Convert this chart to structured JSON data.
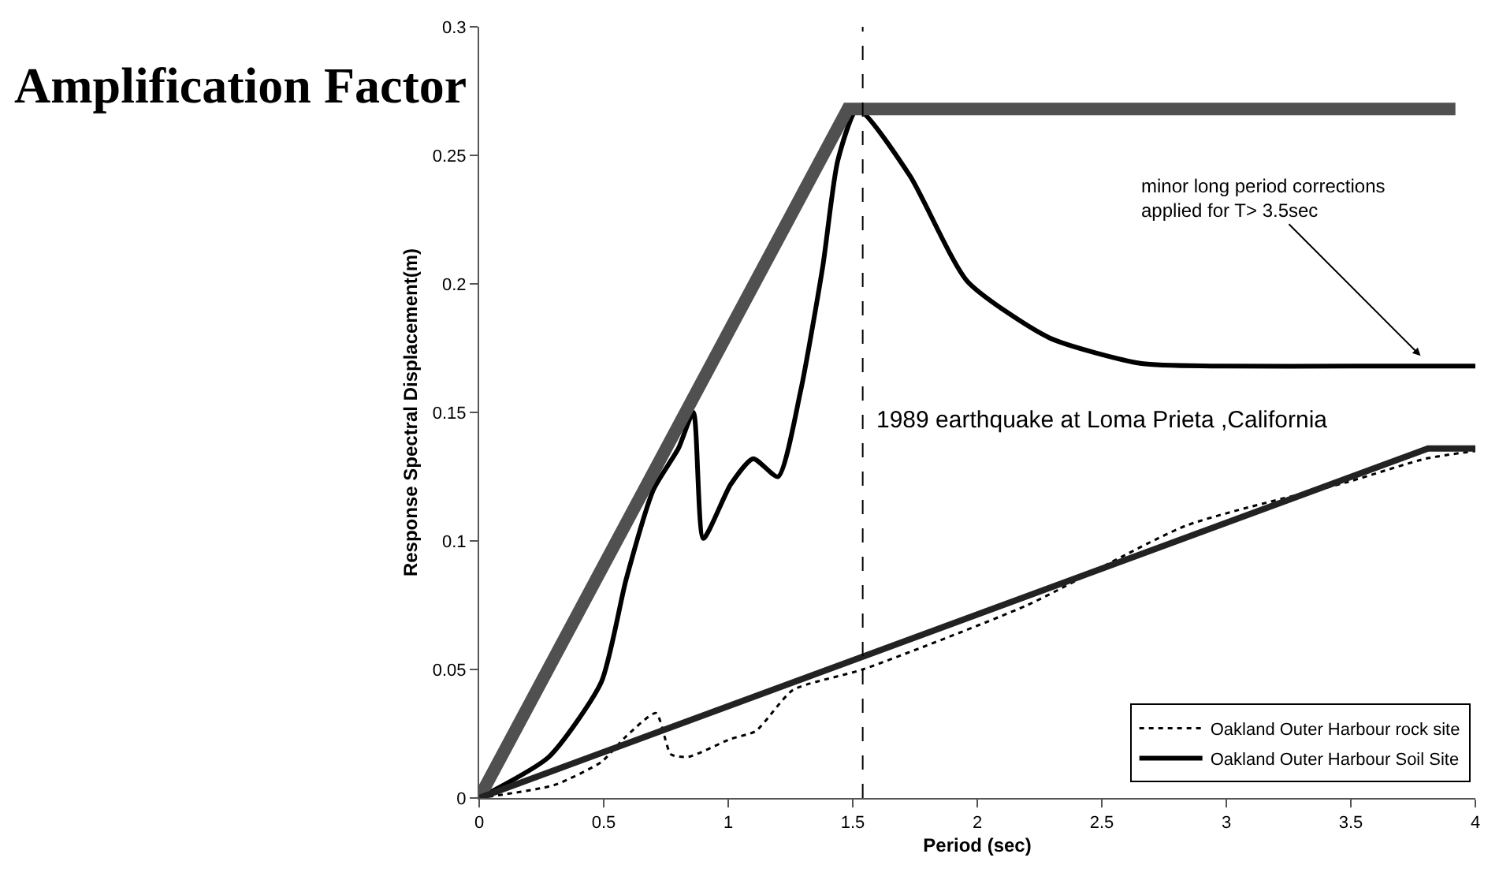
{
  "chart_data": {
    "type": "line",
    "xlabel": "Period (sec)",
    "ylabel": "Response Spectral Displacement(m)",
    "xlim": [
      0,
      4
    ],
    "xticks": [
      0,
      0.5,
      1,
      1.5,
      2,
      2.5,
      3,
      3.5,
      4
    ],
    "ylim": [
      0,
      0.3
    ],
    "yticks": [
      0,
      0.05,
      0.1,
      0.15,
      0.2,
      0.25,
      0.3
    ],
    "legend": "bottom right",
    "marker": "none",
    "series": [
      {
        "name": "Oakland Outer Harbour rock site",
        "color": "#000000",
        "line_style": "dotted",
        "x": [
          0,
          0.3,
          0.49,
          0.59,
          0.71,
          0.77,
          0.84,
          1.01,
          1.11,
          1.26,
          1.54,
          2.2,
          2.84,
          3.49,
          3.8,
          4
        ],
        "values": [
          0,
          0.005,
          0.014,
          0.024,
          0.033,
          0.017,
          0.016,
          0.023,
          0.026,
          0.042,
          0.05,
          0.075,
          0.106,
          0.123,
          0.132,
          0.135
        ]
      },
      {
        "name": "Oakland Outer Harbour Soil Site",
        "color": "#000000",
        "line_style": "solid",
        "x": [
          0,
          0.28,
          0.49,
          0.59,
          0.7,
          0.8,
          0.86,
          0.9,
          1.01,
          1.1,
          1.2,
          1.29,
          1.38,
          1.44,
          1.52,
          1.73,
          1.96,
          2.29,
          2.66,
          3.0,
          3.5,
          4
        ],
        "values": [
          0,
          0.016,
          0.045,
          0.085,
          0.12,
          0.136,
          0.15,
          0.101,
          0.122,
          0.132,
          0.125,
          0.158,
          0.207,
          0.248,
          0.268,
          0.242,
          0.201,
          0.179,
          0.169,
          0.168,
          0.168,
          0.168
        ]
      },
      {
        "color": "#505050",
        "line_style": "solid",
        "x": [
          0,
          1.48,
          3.92
        ],
        "values": [
          0,
          0.268,
          0.268
        ]
      },
      {
        "color": "#222222",
        "line_style": "solid",
        "x": [
          0,
          3.81,
          4
        ],
        "values": [
          0,
          0.136,
          0.136
        ]
      }
    ],
    "ref_lines": [
      {
        "axis": "x",
        "value": 1.54,
        "color": "#000000",
        "line_style": "dashed"
      }
    ],
    "annotations": [
      "Amplification Factor",
      {
        "text": "minor long period corrections\napplied for T> 3.5sec",
        "x": 3.78,
        "y": 0.172
      },
      "1989 earthquake at Loma Prieta ,California"
    ]
  }
}
